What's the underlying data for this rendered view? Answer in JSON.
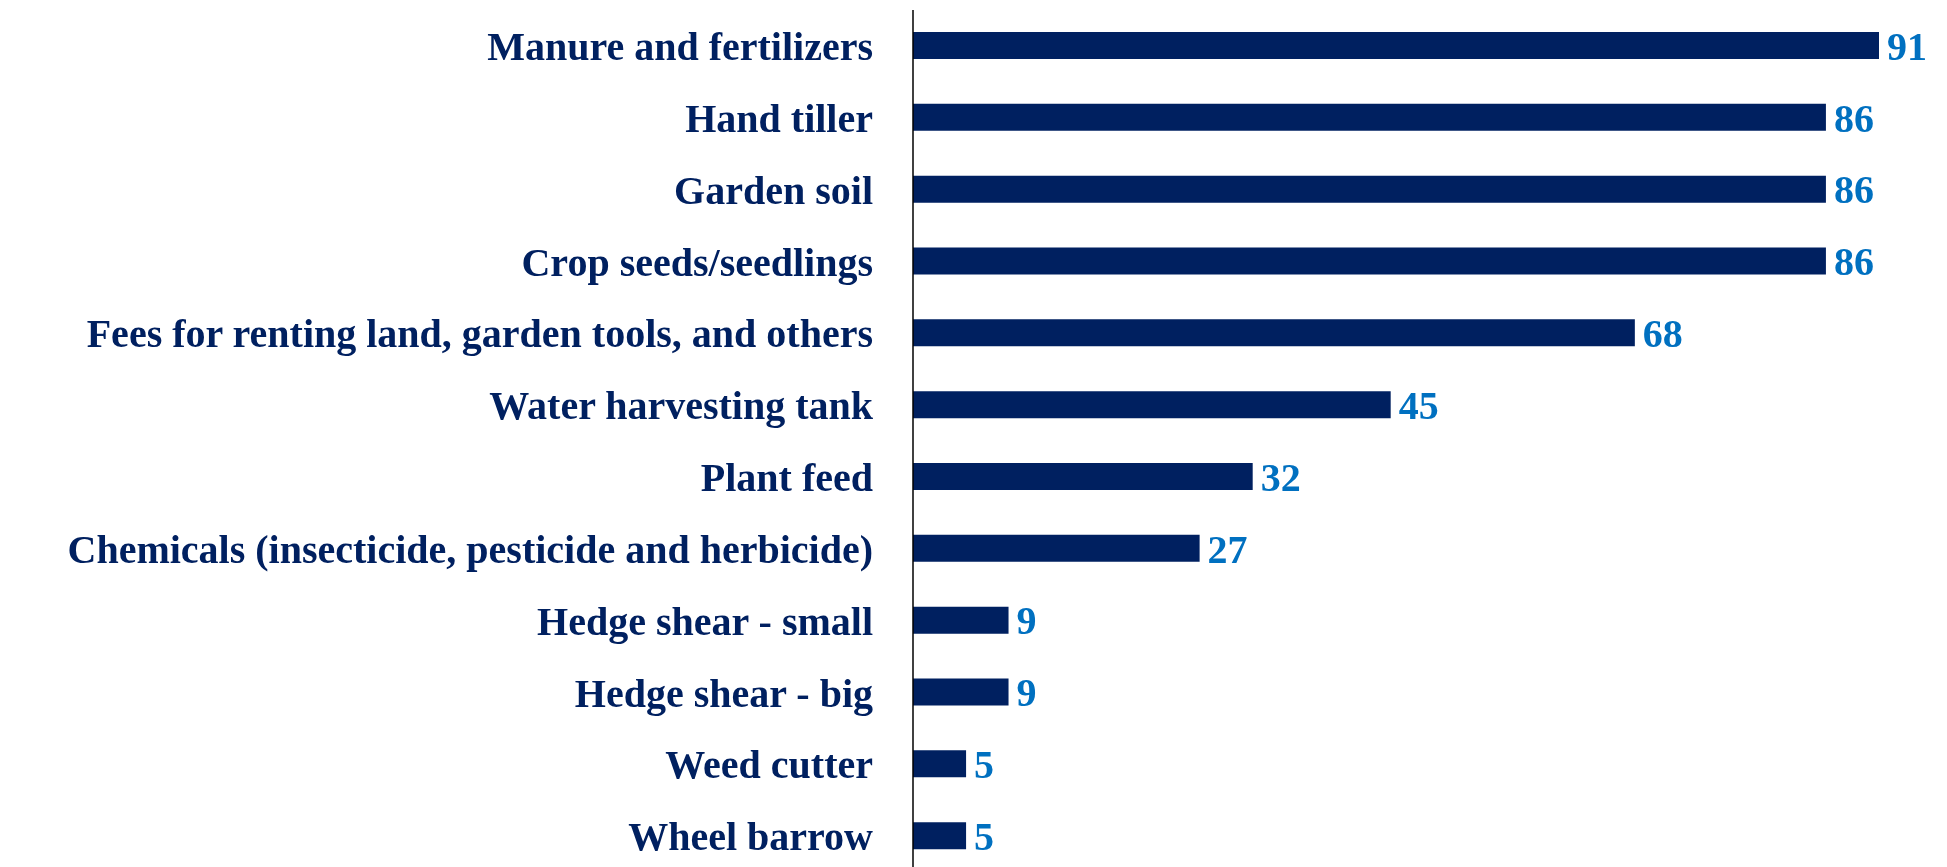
{
  "chart_data": {
    "type": "bar",
    "orientation": "horizontal",
    "categories": [
      "Manure and fertilizers",
      "Hand tiller",
      "Garden soil",
      "Crop seeds/seedlings",
      "Fees for renting land, garden tools, and others",
      "Water harvesting tank",
      "Plant feed",
      "Chemicals (insecticide, pesticide and herbicide)",
      "Hedge shear - small",
      "Hedge shear - big",
      "Weed cutter",
      "Wheel barrow"
    ],
    "values": [
      91,
      86,
      86,
      86,
      68,
      45,
      32,
      27,
      9,
      9,
      5,
      5
    ],
    "color": "#002060",
    "data_labels": true
  }
}
